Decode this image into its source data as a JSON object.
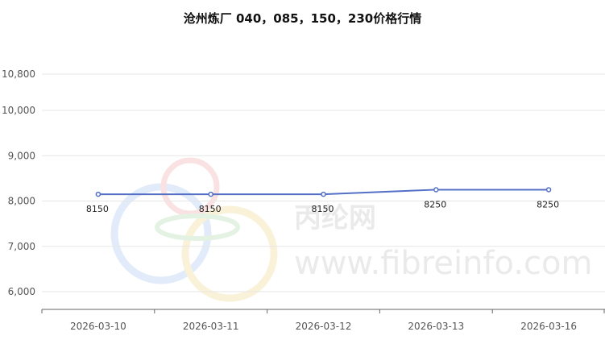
{
  "chart_data": {
    "type": "line",
    "title": "沧州炼厂 040，085，150，230价格行情",
    "categories": [
      "2026-03-10",
      "2026-03-11",
      "2026-03-12",
      "2026-03-13",
      "2026-03-16"
    ],
    "series": [
      {
        "values": [
          8150,
          8150,
          8150,
          8250,
          8250
        ]
      }
    ],
    "data_labels": [
      "8150",
      "8150",
      "8150",
      "8250",
      "8250"
    ],
    "y_ticks": [
      6000,
      7000,
      8000,
      9000,
      10000,
      10800
    ],
    "y_tick_labels": [
      "6,000",
      "7,000",
      "8,000",
      "9,000",
      "10,000",
      "10,800"
    ],
    "ylim": [
      5800,
      10800
    ],
    "grid": true,
    "xlabel": "",
    "ylabel": "",
    "colors": {
      "line": "#5470c6",
      "grid": "#e6e6e6",
      "axis": "#666666"
    }
  },
  "watermark": {
    "brand_cn": "丙纶网",
    "url": "www.fibreinfo.com"
  }
}
